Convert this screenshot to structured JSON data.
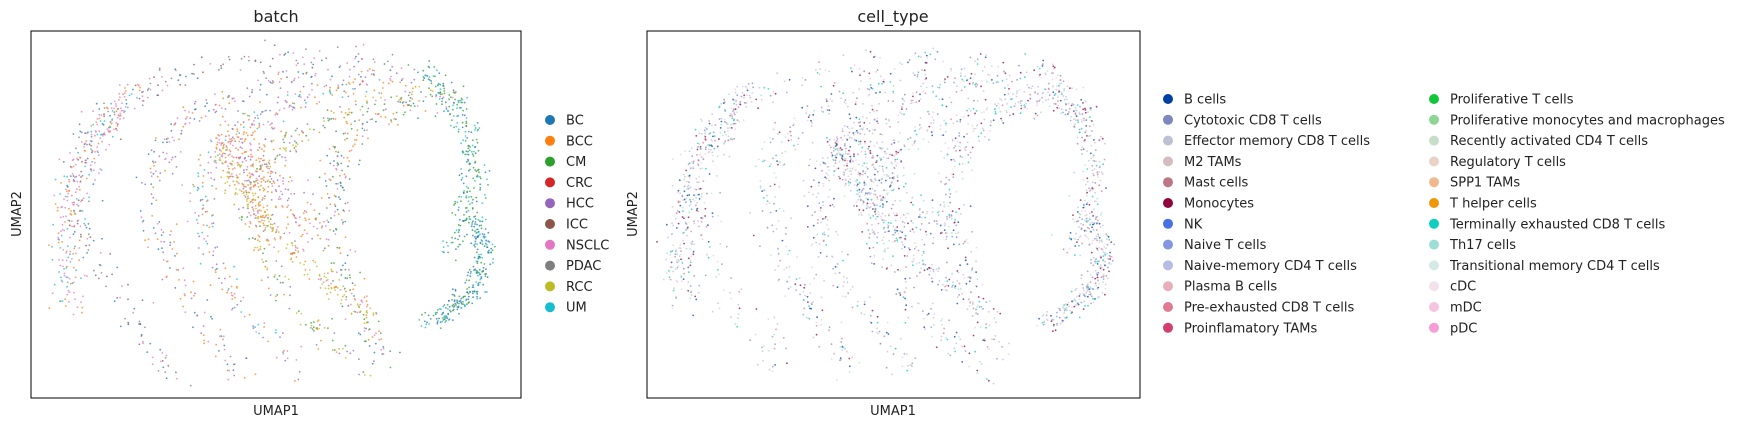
{
  "chart_data": [
    {
      "type": "scatter",
      "title": "batch",
      "xlabel": "UMAP1",
      "ylabel": "UMAP2",
      "grid": false,
      "legend": "right",
      "legend_entries": [
        {
          "label": "BC",
          "color": "#1f77b4"
        },
        {
          "label": "BCC",
          "color": "#ff7f0e"
        },
        {
          "label": "CM",
          "color": "#2ca02c"
        },
        {
          "label": "CRC",
          "color": "#d62728"
        },
        {
          "label": "HCC",
          "color": "#9467bd"
        },
        {
          "label": "ICC",
          "color": "#8c564b"
        },
        {
          "label": "NSCLC",
          "color": "#e377c2"
        },
        {
          "label": "PDAC",
          "color": "#7f7f7f"
        },
        {
          "label": "RCC",
          "color": "#bcbd22"
        },
        {
          "label": "UM",
          "color": "#17becf"
        }
      ]
    },
    {
      "type": "scatter",
      "title": "cell_type",
      "xlabel": "UMAP1",
      "ylabel": "UMAP2",
      "grid": false,
      "legend": "right",
      "legend_entries": [
        {
          "label": "B cells",
          "color": "#023fa5"
        },
        {
          "label": "Cytotoxic CD8 T cells",
          "color": "#7d87b9"
        },
        {
          "label": "Effector memory CD8 T cells",
          "color": "#bec1d4"
        },
        {
          "label": "M2 TAMs",
          "color": "#d6bcc0"
        },
        {
          "label": "Mast cells",
          "color": "#bb7784"
        },
        {
          "label": "Monocytes",
          "color": "#8e063b"
        },
        {
          "label": "NK",
          "color": "#4a6fe3"
        },
        {
          "label": "Naive T cells",
          "color": "#8595e1"
        },
        {
          "label": "Naive-memory CD4 T cells",
          "color": "#b5bbe3"
        },
        {
          "label": "Plasma B cells",
          "color": "#e6afb9"
        },
        {
          "label": "Pre-exhausted CD8 T cells",
          "color": "#e07b91"
        },
        {
          "label": "Proinflamatory TAMs",
          "color": "#d33f6a"
        },
        {
          "label": "Proliferative T cells",
          "color": "#11c638"
        },
        {
          "label": "Proliferative monocytes and macrophages",
          "color": "#8dd593"
        },
        {
          "label": "Recently activated CD4 T cells",
          "color": "#c6dec7"
        },
        {
          "label": "Regulatory T cells",
          "color": "#ead3c6"
        },
        {
          "label": "SPP1 TAMs",
          "color": "#f0b98d"
        },
        {
          "label": "T helper cells",
          "color": "#ef9708"
        },
        {
          "label": "Terminally exhausted CD8 T cells",
          "color": "#0fcfc0"
        },
        {
          "label": "Th17 cells",
          "color": "#9cded6"
        },
        {
          "label": "Transitional memory CD4 T cells",
          "color": "#d5eae7"
        },
        {
          "label": "cDC",
          "color": "#f3e1eb"
        },
        {
          "label": "mDC",
          "color": "#f6c4e1"
        },
        {
          "label": "pDC",
          "color": "#f79cd4"
        }
      ]
    }
  ]
}
